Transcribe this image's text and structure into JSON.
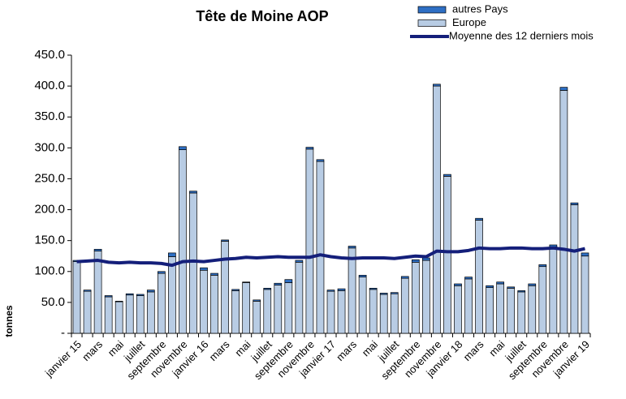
{
  "chart_data": {
    "type": "bar",
    "title": "Tête de Moine AOP",
    "y_label": "tonnes",
    "stacked": true,
    "categories": [
      "janvier 15",
      null,
      "mars",
      null,
      "mai",
      null,
      "juillet",
      null,
      "septembre",
      null,
      "novembre",
      null,
      "janvier 16",
      null,
      "mars",
      null,
      "mai",
      null,
      "juillet",
      null,
      "septembre",
      null,
      "novembre",
      null,
      "janvier 17",
      null,
      "mars",
      null,
      "mai",
      null,
      "juillet",
      null,
      "septembre",
      null,
      "novembre",
      null,
      "janvier 18",
      null,
      "mars",
      null,
      "mai",
      null,
      "juillet",
      null,
      "septembre",
      null,
      "novembre",
      null,
      "janvier 19"
    ],
    "series": [
      {
        "name": "Europe",
        "type": "bar",
        "color": "#b8cce4",
        "values": [
          116,
          68,
          133,
          59,
          51,
          62,
          61,
          67,
          97,
          124,
          297,
          227,
          102,
          94,
          149,
          69,
          82,
          52,
          71,
          78,
          82,
          115,
          298,
          278,
          68,
          69,
          138,
          91,
          71,
          63,
          64,
          89,
          115,
          118,
          400,
          254,
          77,
          88,
          183,
          74,
          80,
          73,
          67,
          77,
          108,
          140,
          393,
          208,
          125
        ]
      },
      {
        "name": "autres Pays",
        "type": "bar",
        "color": "#2e6fc4",
        "values": [
          2,
          2,
          3,
          2,
          1,
          2,
          2,
          3,
          3,
          6,
          5,
          3,
          4,
          3,
          2,
          2,
          1,
          2,
          2,
          3,
          5,
          3,
          3,
          3,
          2,
          3,
          3,
          3,
          2,
          2,
          2,
          3,
          4,
          4,
          3,
          3,
          3,
          3,
          3,
          3,
          3,
          2,
          2,
          3,
          3,
          3,
          5,
          3,
          5
        ]
      },
      {
        "name": "Moyenne des 12 derniers mois",
        "type": "line",
        "color": "#141f7a",
        "values": [
          116,
          117,
          118,
          115,
          114,
          115,
          114,
          114,
          113,
          110,
          116,
          117,
          116,
          118,
          120,
          121,
          123,
          122,
          123,
          124,
          123,
          123,
          123,
          127,
          124,
          122,
          121,
          122,
          122,
          122,
          121,
          123,
          125,
          124,
          133,
          132,
          132,
          134,
          138,
          137,
          137,
          138,
          138,
          137,
          137,
          138,
          136,
          133,
          137
        ]
      }
    ],
    "ylim": [
      0,
      450
    ],
    "yticks": [
      {
        "value": 0,
        "label": "-"
      },
      {
        "value": 50,
        "label": "50.0"
      },
      {
        "value": 100,
        "label": "100.0"
      },
      {
        "value": 150,
        "label": "150.0"
      },
      {
        "value": 200,
        "label": "200.0"
      },
      {
        "value": 250,
        "label": "250.0"
      },
      {
        "value": 300,
        "label": "300.0"
      },
      {
        "value": 350,
        "label": "350.0"
      },
      {
        "value": 400,
        "label": "400.0"
      },
      {
        "value": 450,
        "label": "450.0"
      }
    ],
    "grid": false,
    "legend": "top-right"
  }
}
